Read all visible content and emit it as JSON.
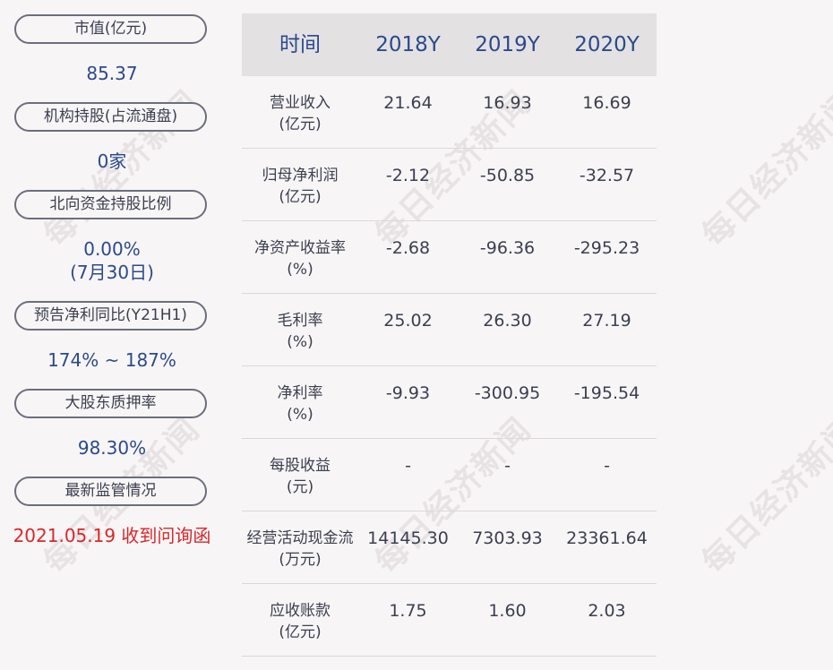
{
  "watermark": "每日经济新闻",
  "metrics": [
    {
      "label": "市值(亿元)",
      "value_lines": [
        "85.37"
      ]
    },
    {
      "label": "机构持股(占流通盘)",
      "value_lines": [
        "0家"
      ]
    },
    {
      "label": "北向资金持股比例",
      "value_lines": [
        "0.00%",
        "(7月30日)"
      ]
    },
    {
      "label": "预告净利同比(Y21H1)",
      "value_lines": [
        "174% ~ 187%"
      ]
    },
    {
      "label": "大股东质押率",
      "value_lines": [
        "98.30%"
      ]
    },
    {
      "label": "最新监管情况",
      "value_lines": [
        "2021.05.19 收到问询函"
      ]
    }
  ],
  "table": {
    "headers": [
      "时间",
      "2018Y",
      "2019Y",
      "2020Y"
    ],
    "rows": [
      {
        "label": [
          "营业收入",
          "(亿元)"
        ],
        "values": [
          "21.64",
          "16.93",
          "16.69"
        ]
      },
      {
        "label": [
          "归母净利润",
          "(亿元)"
        ],
        "values": [
          "-2.12",
          "-50.85",
          "-32.57"
        ]
      },
      {
        "label": [
          "净资产收益率",
          "(%)"
        ],
        "values": [
          "-2.68",
          "-96.36",
          "-295.23"
        ]
      },
      {
        "label": [
          "毛利率",
          "(%)"
        ],
        "values": [
          "25.02",
          "26.30",
          "27.19"
        ]
      },
      {
        "label": [
          "净利率",
          "(%)"
        ],
        "values": [
          "-9.93",
          "-300.95",
          "-195.54"
        ]
      },
      {
        "label": [
          "每股收益",
          "(元)"
        ],
        "values": [
          "-",
          "-",
          "-"
        ]
      },
      {
        "label": [
          "经营活动现金流",
          "(万元)"
        ],
        "values": [
          "14145.30",
          "7303.93",
          "23361.64"
        ]
      },
      {
        "label": [
          "应收账款",
          "(亿元)"
        ],
        "values": [
          "1.75",
          "1.60",
          "2.03"
        ]
      }
    ]
  },
  "colors": {
    "background": "#f8f5f6",
    "value_blue": "#2b4a8b",
    "alert_red": "#d7282b",
    "header_bg": "#e3e1e2",
    "pill_border": "#6b6f7c"
  }
}
